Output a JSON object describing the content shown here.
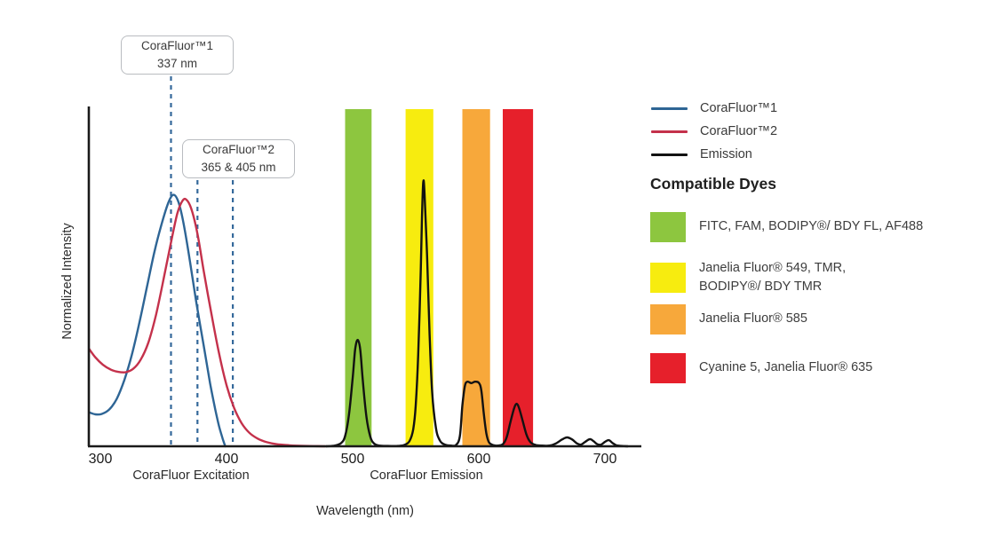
{
  "legend": {
    "items": [
      {
        "label": "CoraFluor™1",
        "color": "#2E6595"
      },
      {
        "label": "CoraFluor™2",
        "color": "#C4314B"
      },
      {
        "label": "Emission",
        "color": "#121212"
      }
    ]
  },
  "dyes": {
    "heading": "Compatible Dyes",
    "items": [
      {
        "color": "#8DC63F",
        "label": "FITC, FAM, BODIPY®/ BDY FL, AF488"
      },
      {
        "color": "#F7EC0F",
        "label": "Janelia Fluor® 549, TMR,\nBODIPY®/ BDY TMR"
      },
      {
        "color": "#F7A83B",
        "label": "Janelia Fluor® 585"
      },
      {
        "color": "#E6202B",
        "label": "Cyanine 5, Janelia Fluor® 635"
      }
    ]
  },
  "chart_data": {
    "type": "line",
    "xlabel": "Wavelength (nm)",
    "ylabel": "Normalized Intensity",
    "xlim": [
      291,
      727
    ],
    "ylim": [
      0,
      1
    ],
    "x_ticks": [
      300,
      400,
      500,
      600,
      700
    ],
    "grid": false,
    "legend_position": "right-top",
    "region_labels": {
      "excitation": "CoraFluor Excitation",
      "emission": "CoraFluor Emission"
    },
    "annotations": [
      {
        "line1": "CoraFluor™1",
        "line2": "337 nm"
      },
      {
        "line1": "CoraFluor™2",
        "line2": "365 & 405 nm"
      }
    ],
    "marker_color": "#35699B",
    "markers": [
      {
        "x_nm": 356,
        "callout": 0
      },
      {
        "x_nm": 377,
        "callout": 1
      },
      {
        "x_nm": 405,
        "callout": 1
      }
    ],
    "bands": [
      {
        "name": "FITC, FAM, BODIPY/ BDY FL, AF488 window",
        "range_nm": [
          494,
          515
        ],
        "color": "#8DC63F"
      },
      {
        "name": "Janelia Fluor 549, TMR, BODIPY/ BDY TMR window",
        "range_nm": [
          542,
          564
        ],
        "color": "#F7EC0F"
      },
      {
        "name": "Janelia Fluor 585 window",
        "range_nm": [
          587,
          609
        ],
        "color": "#F7A83B"
      },
      {
        "name": "Cyanine 5, Janelia Fluor 635 window",
        "range_nm": [
          619,
          643
        ],
        "color": "#E6202B"
      }
    ],
    "series": [
      {
        "name": "CoraFluor™1",
        "color": "#2E6595",
        "points": [
          [
            291,
            0.1
          ],
          [
            296,
            0.094
          ],
          [
            301,
            0.095
          ],
          [
            307,
            0.108
          ],
          [
            313,
            0.14
          ],
          [
            319,
            0.195
          ],
          [
            325,
            0.27
          ],
          [
            331,
            0.365
          ],
          [
            337,
            0.47
          ],
          [
            343,
            0.575
          ],
          [
            349,
            0.66
          ],
          [
            354,
            0.718
          ],
          [
            358,
            0.74
          ],
          [
            362,
            0.718
          ],
          [
            366,
            0.655
          ],
          [
            371,
            0.545
          ],
          [
            376,
            0.425
          ],
          [
            382,
            0.295
          ],
          [
            387,
            0.185
          ],
          [
            391,
            0.11
          ],
          [
            394,
            0.06
          ],
          [
            397,
            0.022
          ],
          [
            399,
            0.0
          ]
        ]
      },
      {
        "name": "CoraFluor™2",
        "color": "#C4314B",
        "points": [
          [
            291,
            0.287
          ],
          [
            296,
            0.262
          ],
          [
            302,
            0.24
          ],
          [
            308,
            0.226
          ],
          [
            314,
            0.219
          ],
          [
            320,
            0.218
          ],
          [
            326,
            0.228
          ],
          [
            332,
            0.255
          ],
          [
            338,
            0.305
          ],
          [
            344,
            0.385
          ],
          [
            350,
            0.49
          ],
          [
            356,
            0.6
          ],
          [
            361,
            0.685
          ],
          [
            365,
            0.722
          ],
          [
            368,
            0.726
          ],
          [
            372,
            0.7
          ],
          [
            377,
            0.625
          ],
          [
            382,
            0.515
          ],
          [
            388,
            0.39
          ],
          [
            394,
            0.275
          ],
          [
            400,
            0.18
          ],
          [
            406,
            0.113
          ],
          [
            412,
            0.068
          ],
          [
            418,
            0.04
          ],
          [
            425,
            0.022
          ],
          [
            432,
            0.012
          ],
          [
            440,
            0.006
          ],
          [
            450,
            0.003
          ],
          [
            462,
            0.001
          ],
          [
            478,
            0.0
          ]
        ]
      },
      {
        "name": "Emission",
        "color": "#121212",
        "points": [
          [
            479,
            0.0
          ],
          [
            486,
            0.002
          ],
          [
            491,
            0.01
          ],
          [
            494,
            0.03
          ],
          [
            497,
            0.09
          ],
          [
            500,
            0.2
          ],
          [
            502,
            0.285
          ],
          [
            504,
            0.313
          ],
          [
            506,
            0.285
          ],
          [
            508,
            0.195
          ],
          [
            511,
            0.085
          ],
          [
            514,
            0.028
          ],
          [
            517,
            0.008
          ],
          [
            521,
            0.002
          ],
          [
            528,
            0.001
          ],
          [
            536,
            0.001
          ],
          [
            541,
            0.004
          ],
          [
            545,
            0.015
          ],
          [
            548,
            0.05
          ],
          [
            550,
            0.12
          ],
          [
            552,
            0.27
          ],
          [
            554,
            0.52
          ],
          [
            555,
            0.68
          ],
          [
            556,
            0.778
          ],
          [
            557,
            0.745
          ],
          [
            559,
            0.56
          ],
          [
            561,
            0.33
          ],
          [
            563,
            0.16
          ],
          [
            566,
            0.055
          ],
          [
            569,
            0.018
          ],
          [
            573,
            0.005
          ],
          [
            578,
            0.002
          ],
          [
            582,
            0.004
          ],
          [
            585,
            0.03
          ],
          [
            587,
            0.12
          ],
          [
            589,
            0.178
          ],
          [
            591,
            0.19
          ],
          [
            594,
            0.186
          ],
          [
            597,
            0.19
          ],
          [
            600,
            0.187
          ],
          [
            602,
            0.165
          ],
          [
            604,
            0.095
          ],
          [
            606,
            0.038
          ],
          [
            608,
            0.012
          ],
          [
            611,
            0.004
          ],
          [
            615,
            0.002
          ],
          [
            619,
            0.006
          ],
          [
            622,
            0.025
          ],
          [
            625,
            0.07
          ],
          [
            628,
            0.112
          ],
          [
            630,
            0.125
          ],
          [
            632,
            0.112
          ],
          [
            635,
            0.072
          ],
          [
            638,
            0.032
          ],
          [
            641,
            0.012
          ],
          [
            645,
            0.004
          ],
          [
            650,
            0.002
          ],
          [
            656,
            0.002
          ],
          [
            661,
            0.008
          ],
          [
            666,
            0.02
          ],
          [
            670,
            0.026
          ],
          [
            674,
            0.02
          ],
          [
            678,
            0.008
          ],
          [
            681,
            0.005
          ],
          [
            684,
            0.012
          ],
          [
            688,
            0.021
          ],
          [
            691,
            0.015
          ],
          [
            694,
            0.006
          ],
          [
            697,
            0.005
          ],
          [
            700,
            0.013
          ],
          [
            703,
            0.018
          ],
          [
            706,
            0.01
          ],
          [
            709,
            0.003
          ],
          [
            713,
            0.001
          ],
          [
            718,
            0.0
          ]
        ]
      }
    ]
  }
}
